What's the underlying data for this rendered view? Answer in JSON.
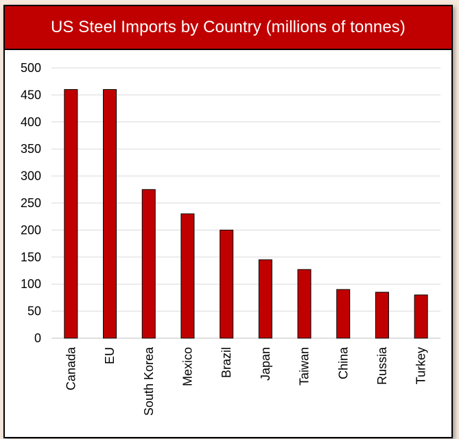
{
  "chart_data": {
    "type": "bar",
    "title": "US Steel Imports by Country (millions of tonnes)",
    "categories": [
      "Canada",
      "EU",
      "South Korea",
      "Mexico",
      "Brazil",
      "Japan",
      "Taiwan",
      "China",
      "Russia",
      "Turkey"
    ],
    "values": [
      460,
      460,
      275,
      230,
      200,
      145,
      127,
      90,
      85,
      80
    ],
    "ylim": [
      0,
      500
    ],
    "yticks": [
      0,
      50,
      100,
      150,
      200,
      250,
      300,
      350,
      400,
      450,
      500
    ],
    "grid": true,
    "bar_color": "#c00000",
    "title_bg": "#c00000",
    "xlabel": "",
    "ylabel": ""
  }
}
